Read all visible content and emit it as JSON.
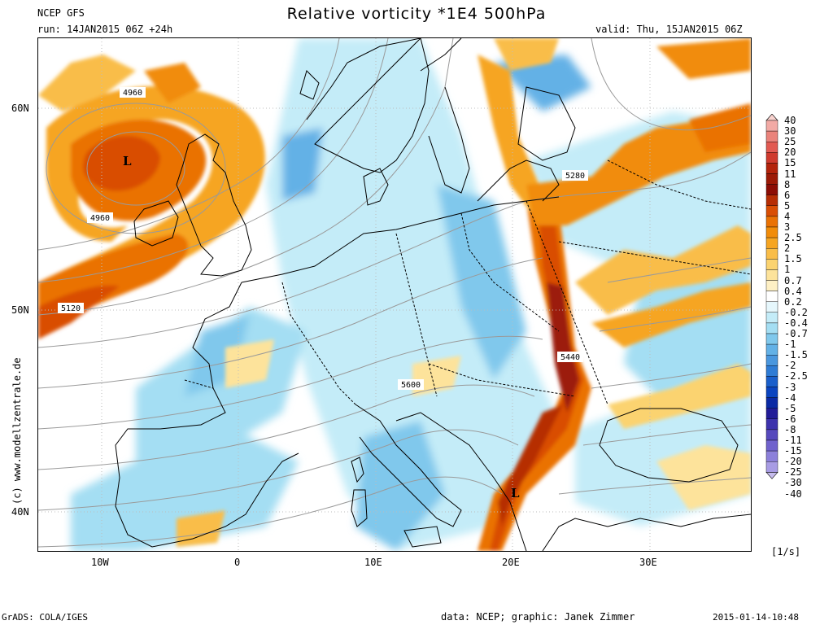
{
  "header": {
    "model": "NCEP GFS",
    "run": "run: 14JAN2015 06Z +24h",
    "title": "Relative vorticity *1E4 500hPa",
    "valid": "valid: Thu, 15JAN2015 06Z"
  },
  "axes": {
    "lat_labels": [
      "60N",
      "50N",
      "40N"
    ],
    "lon_labels": [
      "10W",
      "0",
      "10E",
      "20E",
      "30E"
    ]
  },
  "contours": [
    "4960",
    "4960",
    "5120",
    "5280",
    "5440",
    "5600"
  ],
  "lows": [
    "L",
    "L"
  ],
  "colorbar": {
    "labels": [
      "40",
      "30",
      "25",
      "20",
      "15",
      "11",
      "8",
      "6",
      "5",
      "4",
      "3",
      "2.5",
      "2",
      "1.5",
      "1",
      "0.7",
      "0.4",
      "0.2",
      "-0.2",
      "-0.4",
      "-0.7",
      "-1",
      "-1.5",
      "-2",
      "-2.5",
      "-3",
      "-4",
      "-5",
      "-6",
      "-8",
      "-11",
      "-15",
      "-20",
      "-25",
      "-30",
      "-40"
    ],
    "colors": [
      "#f9d3cf",
      "#f2aaa5",
      "#ea837b",
      "#e25a52",
      "#cf3a2e",
      "#b3230c",
      "#9c1a07",
      "#8c0d05",
      "#b62d04",
      "#d94e04",
      "#ea7204",
      "#f18c09",
      "#f6a521",
      "#f9bd48",
      "#fbd370",
      "#fde39b",
      "#fef0c5",
      "#ffffff",
      "#e6f7fc",
      "#c4ecf8",
      "#a4def3",
      "#80c8ec",
      "#63b1e6",
      "#4a97de",
      "#2f7cd5",
      "#1a5fcb",
      "#0b45c0",
      "#0b2aa5",
      "#221c98",
      "#3d32ad",
      "#5649bd",
      "#7062cd",
      "#8c80da",
      "#a89ce4",
      "#c6bced"
    ],
    "units": "[1/s]"
  },
  "credit": "(c) www.modellzentrale.de",
  "footer": {
    "left": "GrADS: COLA/IGES",
    "data": "data: NCEP; graphic: Janek Zimmer",
    "timestamp": "2015-01-14-10:48"
  },
  "colors": {
    "map_background": "#ffffff",
    "land_fill": "#ffffff",
    "coast_line": "#000000",
    "contour_line": "#9a9a9a"
  }
}
